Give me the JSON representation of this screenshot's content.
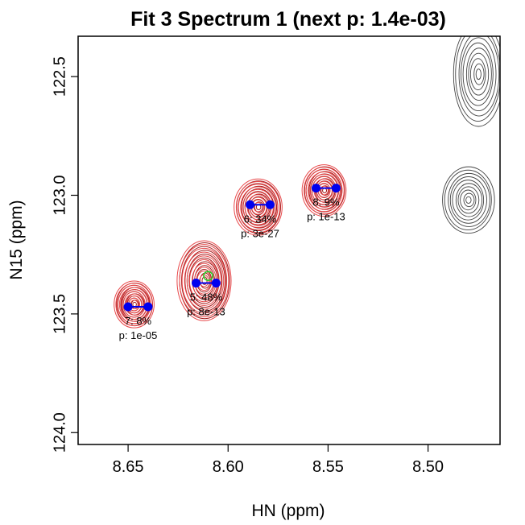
{
  "chart_data": {
    "type": "contour",
    "title": "Fit 3 Spectrum 1 (next p: 1.4e-03)",
    "xlabel": "HN (ppm)",
    "ylabel": "N15 (ppm)",
    "xlim": [
      8.675,
      8.464
    ],
    "ylim": [
      122.33,
      124.05
    ],
    "x_ticks": [
      {
        "value": 8.65,
        "label": "8.65"
      },
      {
        "value": 8.6,
        "label": "8.60"
      },
      {
        "value": 8.55,
        "label": "8.55"
      },
      {
        "value": 8.5,
        "label": "8.50"
      }
    ],
    "y_ticks": [
      {
        "value": 122.5,
        "label": "122.5"
      },
      {
        "value": 123.0,
        "label": "123.0"
      },
      {
        "value": 123.5,
        "label": "123.5"
      },
      {
        "value": 124.0,
        "label": "124.0"
      }
    ],
    "colors": {
      "observed_contour": "#444444",
      "fit_contour": "#e8484a",
      "fit_contour_dark": "#a01818",
      "peak": "#0000ee",
      "marker": "#22cc22"
    },
    "peaks": [
      {
        "id": 5,
        "label": "5: 48%",
        "p_label": "p: 8e-13",
        "x": [
          8.616,
          8.606
        ],
        "y": 123.37
      },
      {
        "id": 6,
        "label": "6: 34%",
        "p_label": "p: 3e-27",
        "x": [
          8.589,
          8.579
        ],
        "y": 123.04
      },
      {
        "id": 7,
        "label": "7: 8%",
        "p_label": "p: 1e-05",
        "x": [
          8.65,
          8.64
        ],
        "y": 123.47
      },
      {
        "id": 8,
        "label": "8: 9%",
        "p_label": "p: 1e-13",
        "x": [
          8.556,
          8.546
        ],
        "y": 122.97
      }
    ],
    "reference_marker": {
      "x": 8.61,
      "y": 123.34
    },
    "contour_blobs": [
      {
        "group": "fit",
        "cx": 8.612,
        "cy": 123.36,
        "rx": 0.0125,
        "ry": 0.16
      },
      {
        "group": "fit",
        "cx": 8.585,
        "cy": 123.05,
        "rx": 0.011,
        "ry": 0.11
      },
      {
        "group": "fit",
        "cx": 8.647,
        "cy": 123.46,
        "rx": 0.009,
        "ry": 0.09
      },
      {
        "group": "fit",
        "cx": 8.552,
        "cy": 122.98,
        "rx": 0.01,
        "ry": 0.1
      },
      {
        "group": "observed",
        "cx": 8.475,
        "cy": 122.49,
        "rx": 0.0125,
        "ry": 0.22
      },
      {
        "group": "observed",
        "cx": 8.48,
        "cy": 123.02,
        "rx": 0.013,
        "ry": 0.14
      }
    ],
    "contour_levels": 10
  }
}
